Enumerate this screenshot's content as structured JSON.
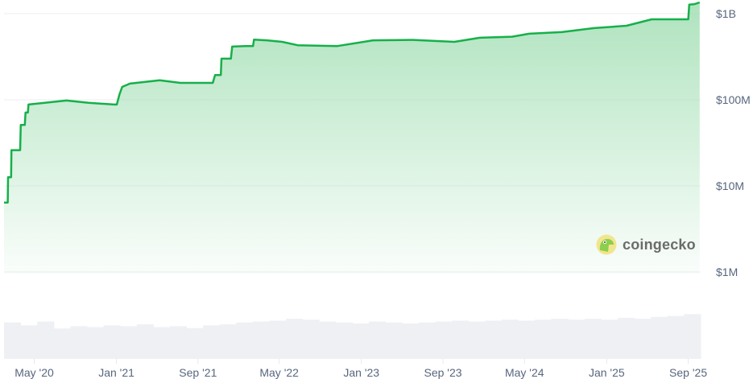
{
  "chart_data": {
    "type": "area",
    "title": "",
    "xlabel": "",
    "ylabel": "",
    "y_scale": "log",
    "ylim": [
      100000,
      1440000000
    ],
    "xlim": [
      "2020-02-01",
      "2025-10-08"
    ],
    "grid": true,
    "line_color": "#16b04a",
    "fill_color": "#9bdcae",
    "volume_color": "#eef0f4",
    "y_ticks": [
      {
        "value": 1000000000,
        "label": "$1B"
      },
      {
        "value": 100000000,
        "label": "$100M"
      },
      {
        "value": 10000000,
        "label": "$10M"
      },
      {
        "value": 1000000,
        "label": "$1M"
      }
    ],
    "x_ticks": [
      {
        "date": "2020-05-01",
        "label": "May '20"
      },
      {
        "date": "2021-01-01",
        "label": "Jan '21"
      },
      {
        "date": "2021-09-01",
        "label": "Sep '21"
      },
      {
        "date": "2022-05-01",
        "label": "May '22"
      },
      {
        "date": "2023-01-01",
        "label": "Jan '23"
      },
      {
        "date": "2023-09-01",
        "label": "Sep '23"
      },
      {
        "date": "2024-05-01",
        "label": "May '24"
      },
      {
        "date": "2025-01-01",
        "label": "Jan '25"
      },
      {
        "date": "2025-09-01",
        "label": "Sep '25"
      }
    ],
    "series": [
      {
        "x": [
          "2020-02-01",
          "2020-02-12",
          "2020-02-13",
          "2020-02-22",
          "2020-02-23",
          "2020-03-20",
          "2020-03-22",
          "2020-04-03",
          "2020-04-05",
          "2020-04-12",
          "2020-04-14",
          "2020-08-05",
          "2020-10-10",
          "2020-12-25",
          "2021-01-02",
          "2021-01-10",
          "2021-01-18",
          "2021-02-10",
          "2021-05-10",
          "2021-07-10",
          "2021-10-15",
          "2021-10-22",
          "2021-11-08",
          "2021-11-10",
          "2021-12-08",
          "2021-12-12",
          "2022-01-20",
          "2022-02-12",
          "2022-02-15",
          "2022-03-25",
          "2022-05-10",
          "2022-06-25",
          "2022-10-20",
          "2023-02-05",
          "2023-06-05",
          "2023-10-05",
          "2023-12-20",
          "2024-03-25",
          "2024-05-15",
          "2024-08-20",
          "2024-11-25",
          "2025-03-01",
          "2025-05-15",
          "2025-09-01",
          "2025-09-04",
          "2025-09-20",
          "2025-10-05"
        ],
        "values": [
          6400000,
          6400000,
          12600000,
          12600000,
          26000000,
          26000000,
          51000000,
          51000000,
          71000000,
          71000000,
          88000000,
          98000000,
          92000000,
          88000000,
          88000000,
          115000000,
          141000000,
          154000000,
          168000000,
          157000000,
          157000000,
          194000000,
          194000000,
          300000000,
          300000000,
          414000000,
          420000000,
          420000000,
          500000000,
          490000000,
          470000000,
          430000000,
          420000000,
          490000000,
          495000000,
          470000000,
          525000000,
          540000000,
          584000000,
          610000000,
          680000000,
          724000000,
          860000000,
          860000000,
          1270000000,
          1290000000,
          1350000000
        ]
      }
    ],
    "volume_relative": [
      0.78,
      0.72,
      0.8,
      0.65,
      0.7,
      0.68,
      0.72,
      0.7,
      0.74,
      0.68,
      0.7,
      0.66,
      0.72,
      0.74,
      0.78,
      0.8,
      0.82,
      0.86,
      0.84,
      0.8,
      0.78,
      0.76,
      0.8,
      0.78,
      0.76,
      0.78,
      0.8,
      0.82,
      0.8,
      0.82,
      0.84,
      0.82,
      0.84,
      0.86,
      0.84,
      0.86,
      0.84,
      0.88,
      0.86,
      0.9,
      0.92,
      0.96
    ]
  },
  "watermark": {
    "text": "coingecko"
  }
}
